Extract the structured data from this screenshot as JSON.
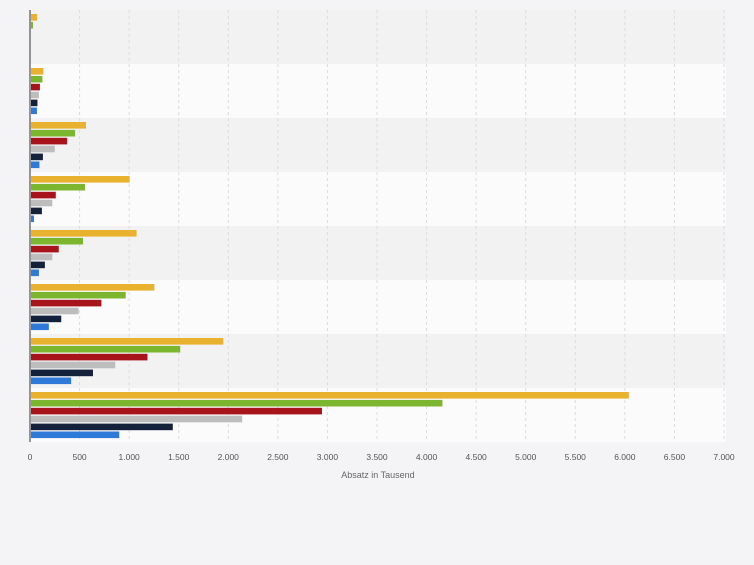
{
  "chart_data": {
    "type": "bar",
    "orientation": "horizontal",
    "categories": [
      "",
      "",
      "",
      "",
      "",
      "",
      "",
      ""
    ],
    "series": [
      {
        "values": [
          62,
          125,
          555,
          995,
          1065,
          1245,
          1940,
          6030
        ]
      },
      {
        "values": [
          20,
          115,
          445,
          545,
          525,
          955,
          1505,
          4150
        ]
      },
      {
        "values": [
          0,
          90,
          365,
          250,
          280,
          710,
          1175,
          2935
        ]
      },
      {
        "values": [
          0,
          80,
          240,
          215,
          215,
          480,
          850,
          2130
        ]
      },
      {
        "values": [
          0,
          65,
          120,
          110,
          140,
          305,
          625,
          1430
        ]
      },
      {
        "values": [
          0,
          60,
          85,
          30,
          80,
          180,
          405,
          890
        ]
      }
    ],
    "colors": [
      "#e8b22f",
      "#7cb62e",
      "#a8141b",
      "#bdbdbd",
      "#13223a",
      "#2f7ad9"
    ],
    "xlabel": "Absatz in Tausend",
    "xlim": [
      0,
      7000
    ],
    "xticks": [
      0,
      500,
      1000,
      1500,
      2000,
      2500,
      3000,
      3500,
      4000,
      4500,
      5000,
      5500,
      6000,
      6500,
      7000
    ],
    "xtick_labels": [
      "0",
      "500",
      "1.000",
      "1.500",
      "2.000",
      "2.500",
      "3.000",
      "3.500",
      "4.000",
      "4.500",
      "5.000",
      "5.500",
      "6.000",
      "6.500",
      "7.000"
    ],
    "grid": "vertical",
    "legend": "none"
  }
}
